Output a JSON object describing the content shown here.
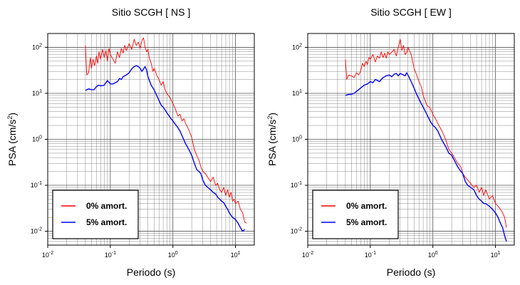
{
  "chart_data": [
    {
      "type": "line",
      "title": "Sitio SCGH [ NS ]",
      "xlabel": "Periodo (s)",
      "ylabel": {
        "base": "PSA (cm/s",
        "exp": "2",
        "close": ")"
      },
      "xscale": "log",
      "yscale": "log",
      "xlim": [
        0.01,
        20
      ],
      "ylim": [
        0.005,
        200
      ],
      "xticks": [
        {
          "base": "10",
          "exp": "-2"
        },
        {
          "base": "10",
          "exp": "-1"
        },
        {
          "base": "10",
          "exp": "0"
        },
        {
          "base": "10",
          "exp": "1"
        }
      ],
      "yticks": [
        {
          "base": "10",
          "exp": "-2"
        },
        {
          "base": "10",
          "exp": "-1"
        },
        {
          "base": "10",
          "exp": "0"
        },
        {
          "base": "10",
          "exp": "1"
        },
        {
          "base": "10",
          "exp": "2"
        }
      ],
      "grid": true,
      "legend_position": "bottom-left",
      "series": [
        {
          "name": "0% amort.",
          "color": "#ff0000",
          "x": [
            0.04,
            0.042,
            0.045,
            0.048,
            0.05,
            0.053,
            0.056,
            0.06,
            0.063,
            0.066,
            0.07,
            0.075,
            0.08,
            0.085,
            0.09,
            0.095,
            0.1,
            0.11,
            0.12,
            0.13,
            0.14,
            0.15,
            0.16,
            0.17,
            0.18,
            0.19,
            0.2,
            0.22,
            0.24,
            0.26,
            0.28,
            0.3,
            0.32,
            0.34,
            0.36,
            0.38,
            0.4,
            0.42,
            0.45,
            0.48,
            0.5,
            0.55,
            0.6,
            0.65,
            0.7,
            0.75,
            0.8,
            0.9,
            1.0,
            1.1,
            1.2,
            1.3,
            1.4,
            1.5,
            1.6,
            1.8,
            2.0,
            2.2,
            2.4,
            2.6,
            2.8,
            3.0,
            3.3,
            3.6,
            4.0,
            4.4,
            4.8,
            5.2,
            5.6,
            6.0,
            6.5,
            7.0,
            7.5,
            8.0,
            8.5,
            9.0,
            9.5,
            10,
            11,
            12,
            13,
            14,
            15
          ],
          "y": [
            110,
            25,
            28,
            60,
            35,
            55,
            40,
            65,
            45,
            80,
            55,
            90,
            60,
            85,
            50,
            95,
            70,
            55,
            45,
            80,
            60,
            95,
            75,
            110,
            85,
            100,
            120,
            90,
            150,
            110,
            130,
            95,
            140,
            160,
            100,
            80,
            90,
            60,
            45,
            30,
            35,
            25,
            20,
            15,
            18,
            12,
            10,
            8,
            6,
            4.5,
            3.2,
            3.5,
            2.5,
            2.8,
            2.2,
            1.6,
            1.1,
            0.6,
            0.45,
            0.35,
            0.25,
            0.2,
            0.18,
            0.15,
            0.12,
            0.15,
            0.1,
            0.11,
            0.08,
            0.07,
            0.09,
            0.06,
            0.08,
            0.055,
            0.07,
            0.045,
            0.05,
            0.04,
            0.045,
            0.03,
            0.025,
            0.016,
            0.015
          ]
        },
        {
          "name": "5% amort.",
          "color": "#0000ff",
          "x": [
            0.04,
            0.045,
            0.05,
            0.055,
            0.06,
            0.065,
            0.07,
            0.08,
            0.09,
            0.1,
            0.11,
            0.12,
            0.13,
            0.14,
            0.15,
            0.16,
            0.18,
            0.2,
            0.22,
            0.24,
            0.26,
            0.28,
            0.3,
            0.32,
            0.34,
            0.36,
            0.38,
            0.4,
            0.45,
            0.5,
            0.55,
            0.6,
            0.65,
            0.7,
            0.8,
            0.9,
            1.0,
            1.1,
            1.2,
            1.3,
            1.4,
            1.6,
            1.8,
            2.0,
            2.2,
            2.4,
            2.6,
            2.8,
            3.0,
            3.3,
            3.6,
            4.0,
            4.4,
            4.8,
            5.2,
            5.6,
            6.0,
            6.5,
            7.0,
            7.5,
            8.0,
            8.5,
            9.0,
            10,
            11,
            12,
            13,
            14
          ],
          "y": [
            11.5,
            12.5,
            12,
            12,
            14,
            15,
            14.5,
            15,
            19,
            16,
            16,
            17,
            18,
            21,
            20,
            23,
            25,
            28,
            34,
            38,
            40,
            38,
            35,
            30,
            34,
            38,
            32,
            23,
            15,
            12,
            9,
            7,
            5.5,
            5,
            3.8,
            3.0,
            2.5,
            2.1,
            1.8,
            1.5,
            1.2,
            0.8,
            0.6,
            0.45,
            0.3,
            0.22,
            0.2,
            0.18,
            0.13,
            0.1,
            0.09,
            0.08,
            0.07,
            0.065,
            0.055,
            0.05,
            0.045,
            0.042,
            0.035,
            0.03,
            0.025,
            0.022,
            0.02,
            0.018,
            0.015,
            0.012,
            0.01,
            0.011
          ]
        }
      ]
    },
    {
      "type": "line",
      "title": "Sitio SCGH [ EW ]",
      "xlabel": "Periodo (s)",
      "ylabel": {
        "base": "PSA (cm/s",
        "exp": "2",
        "close": ")"
      },
      "xscale": "log",
      "yscale": "log",
      "xlim": [
        0.01,
        20
      ],
      "ylim": [
        0.005,
        200
      ],
      "xticks": [
        {
          "base": "10",
          "exp": "-2"
        },
        {
          "base": "10",
          "exp": "-1"
        },
        {
          "base": "10",
          "exp": "0"
        },
        {
          "base": "10",
          "exp": "1"
        }
      ],
      "yticks": [
        {
          "base": "10",
          "exp": "-2"
        },
        {
          "base": "10",
          "exp": "-1"
        },
        {
          "base": "10",
          "exp": "0"
        },
        {
          "base": "10",
          "exp": "1"
        },
        {
          "base": "10",
          "exp": "2"
        }
      ],
      "grid": true,
      "legend_position": "bottom-left",
      "series": [
        {
          "name": "0% amort.",
          "color": "#ff0000",
          "x": [
            0.04,
            0.042,
            0.045,
            0.05,
            0.055,
            0.06,
            0.065,
            0.07,
            0.075,
            0.08,
            0.085,
            0.09,
            0.095,
            0.1,
            0.11,
            0.12,
            0.13,
            0.14,
            0.15,
            0.16,
            0.17,
            0.18,
            0.19,
            0.2,
            0.22,
            0.24,
            0.26,
            0.28,
            0.3,
            0.32,
            0.34,
            0.36,
            0.38,
            0.4,
            0.45,
            0.5,
            0.55,
            0.6,
            0.65,
            0.7,
            0.8,
            0.9,
            1.0,
            1.1,
            1.2,
            1.4,
            1.6,
            1.8,
            2.0,
            2.2,
            2.5,
            2.8,
            3.0,
            3.3,
            3.6,
            4.0,
            4.5,
            5.0,
            5.5,
            6.0,
            6.5,
            7.0,
            8.0,
            9.0,
            10,
            11,
            12,
            13,
            14,
            15
          ],
          "y": [
            55,
            20,
            25,
            24,
            22,
            28,
            25,
            30,
            45,
            38,
            50,
            42,
            60,
            55,
            70,
            48,
            65,
            58,
            80,
            60,
            75,
            58,
            80,
            70,
            78,
            90,
            65,
            100,
            150,
            85,
            110,
            70,
            75,
            100,
            70,
            35,
            25,
            18,
            14,
            9,
            5.5,
            4.8,
            3.5,
            2.8,
            2.2,
            1.5,
            1.0,
            0.6,
            0.5,
            0.4,
            0.3,
            0.25,
            0.18,
            0.15,
            0.13,
            0.11,
            0.09,
            0.1,
            0.07,
            0.09,
            0.06,
            0.08,
            0.05,
            0.06,
            0.04,
            0.035,
            0.03,
            0.025,
            0.02,
            0.012
          ]
        },
        {
          "name": "5% amort.",
          "color": "#0000ff",
          "x": [
            0.04,
            0.045,
            0.05,
            0.055,
            0.06,
            0.065,
            0.07,
            0.08,
            0.09,
            0.1,
            0.11,
            0.12,
            0.13,
            0.14,
            0.15,
            0.16,
            0.18,
            0.2,
            0.22,
            0.24,
            0.26,
            0.28,
            0.3,
            0.32,
            0.34,
            0.36,
            0.38,
            0.4,
            0.45,
            0.5,
            0.55,
            0.6,
            0.65,
            0.7,
            0.8,
            0.9,
            1.0,
            1.1,
            1.2,
            1.4,
            1.6,
            1.8,
            2.0,
            2.2,
            2.5,
            2.8,
            3.0,
            3.3,
            3.6,
            4.0,
            4.5,
            5.0,
            5.5,
            6.0,
            6.5,
            7.0,
            8.0,
            9.0,
            10,
            11,
            12,
            13,
            14,
            15
          ],
          "y": [
            9,
            9.5,
            9.5,
            10,
            11,
            12,
            13,
            15,
            16,
            18,
            17,
            20,
            19,
            18,
            20,
            22,
            24,
            25,
            23,
            26,
            27,
            24,
            27,
            26,
            25,
            24,
            28,
            25,
            18,
            13,
            9.5,
            7.5,
            6,
            5,
            3.5,
            2.5,
            2.0,
            1.8,
            1.5,
            0.95,
            0.7,
            0.5,
            0.45,
            0.35,
            0.25,
            0.2,
            0.18,
            0.12,
            0.1,
            0.09,
            0.08,
            0.06,
            0.05,
            0.045,
            0.04,
            0.04,
            0.035,
            0.03,
            0.025,
            0.02,
            0.015,
            0.012,
            0.008,
            0.006
          ]
        }
      ]
    }
  ]
}
